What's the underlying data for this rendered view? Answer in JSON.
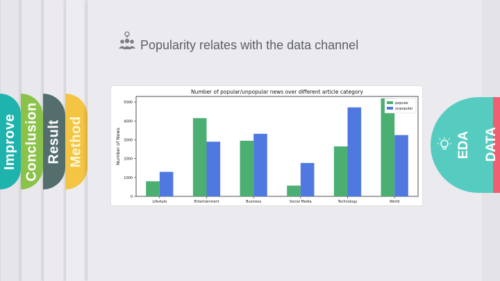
{
  "tabs": {
    "improve": "Improve",
    "conclusion": "Conclusion",
    "result": "Result",
    "method": "Method",
    "eda": "EDA",
    "data": "DATA"
  },
  "colors": {
    "improve": "#1fb3ae",
    "conclusion": "#8bc34a",
    "result": "#546e6e",
    "method": "#f4c542",
    "eda": "#56ccc0",
    "data": "#ef5e71",
    "popular": "#4caf72",
    "unpopular": "#4f79e0"
  },
  "slide": {
    "title": "Popularity relates with the data channel",
    "icons": [
      "people-icon",
      "lightbulb-icon"
    ]
  },
  "chart_data": {
    "type": "bar",
    "title": "Number of popular/unpopular news over different article category",
    "xlabel": "",
    "ylabel": "Number of News",
    "ylim": [
      0,
      5300
    ],
    "yticks": [
      0,
      1000,
      2000,
      3000,
      4000,
      5000
    ],
    "categories": [
      "Lifestyle",
      "Entertainment",
      "Business",
      "Social Media",
      "Technology",
      "World"
    ],
    "legend_position": "top-right",
    "grid": false,
    "series": [
      {
        "name": "popular",
        "color": "#4caf72",
        "values": [
          800,
          4150,
          2950,
          570,
          2650,
          5200
        ]
      },
      {
        "name": "unpopular",
        "color": "#4f79e0",
        "values": [
          1300,
          2900,
          3320,
          1770,
          4720,
          3250
        ]
      }
    ]
  }
}
